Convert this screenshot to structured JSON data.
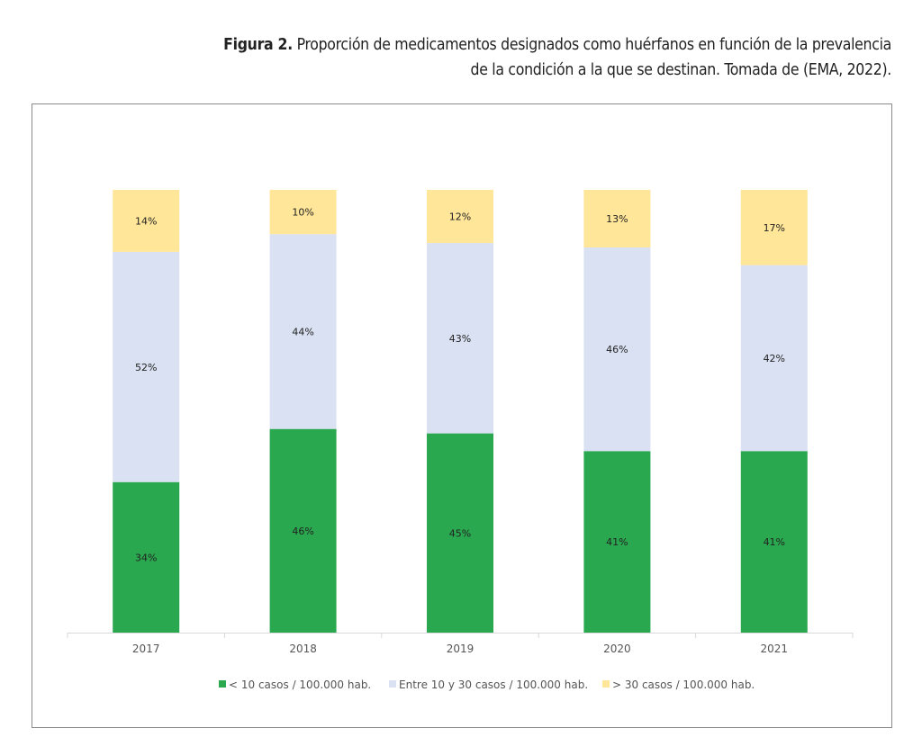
{
  "caption": {
    "label": "Figura 2.",
    "text": " Proporción de medicamentos designados como huérfanos en función de la prevalencia de la condición a la que se destinan. Tomada de (EMA, 2022)."
  },
  "chart_data": {
    "type": "bar",
    "stacked": true,
    "categories": [
      "2017",
      "2018",
      "2019",
      "2020",
      "2021"
    ],
    "ylim": [
      0,
      100
    ],
    "grid": false,
    "legend_position": "bottom",
    "series": [
      {
        "name": "< 10 casos / 100.000 hab.",
        "color": "#2aa84f",
        "values": [
          34,
          46,
          45,
          41,
          41
        ]
      },
      {
        "name": "Entre 10 y 30 casos / 100.000 hab.",
        "color": "#d9e1f2",
        "values": [
          52,
          44,
          43,
          46,
          42
        ]
      },
      {
        "name": "> 30 casos / 100.000 hab.",
        "color": "#ffe699",
        "values": [
          14,
          10,
          12,
          13,
          17
        ]
      }
    ]
  }
}
